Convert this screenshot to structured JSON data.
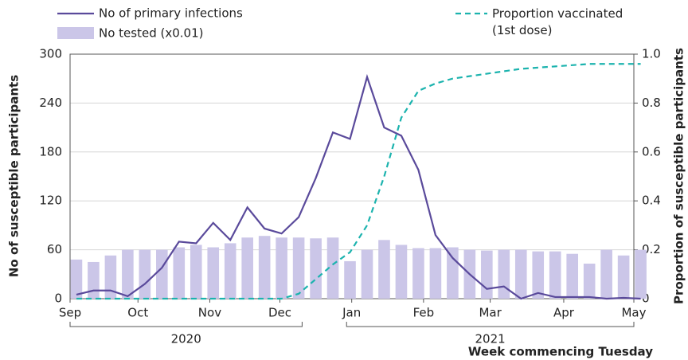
{
  "chart_data": {
    "type": "combo",
    "y_label": "No of susceptible participants",
    "y2_label": "Proportion of susceptible participants",
    "x_label": "Week commencing Tuesday",
    "x": [
      0,
      1,
      2,
      3,
      4,
      5,
      6,
      7,
      8,
      9,
      10,
      11,
      12,
      13,
      14,
      15,
      16,
      17,
      18,
      19,
      20,
      21,
      22,
      23,
      24,
      25,
      26,
      27,
      28,
      29,
      30,
      31,
      32,
      33
    ],
    "xlim": [
      -0.37,
      32.6
    ],
    "xticks": [
      {
        "value": -0.37,
        "label": "Sep"
      },
      {
        "value": 3.6,
        "label": "Oct"
      },
      {
        "value": 7.8,
        "label": "Nov"
      },
      {
        "value": 11.9,
        "label": "Dec"
      },
      {
        "value": 16.1,
        "label": "Jan"
      },
      {
        "value": 20.3,
        "label": "Feb"
      },
      {
        "value": 24.2,
        "label": "Mar"
      },
      {
        "value": 28.5,
        "label": "Apr"
      },
      {
        "value": 32.6,
        "label": "May"
      }
    ],
    "years": [
      {
        "label": "2020",
        "from": -0.37,
        "to": 13.2
      },
      {
        "label": "2021",
        "from": 15.8,
        "to": 32.6
      }
    ],
    "ylim": [
      0,
      300
    ],
    "yticks": [
      0,
      60,
      120,
      180,
      240,
      300
    ],
    "y2lim": [
      0,
      1
    ],
    "y2ticks": [
      0,
      0.2,
      0.4,
      0.6,
      0.8,
      {
        "value": 1,
        "label": "1.0"
      }
    ],
    "grid": true,
    "series": [
      {
        "name": "No tested (x0.01)",
        "kind": "bar",
        "color": "#cbc6e8",
        "values": [
          48,
          45,
          53,
          60,
          60,
          60,
          63,
          66,
          63,
          68,
          75,
          77,
          75,
          75,
          74,
          75,
          46,
          60,
          72,
          66,
          62,
          62,
          63,
          60,
          59,
          60,
          60,
          58,
          58,
          55,
          43,
          60,
          53,
          60
        ]
      },
      {
        "name": "No of primary infections",
        "kind": "line",
        "color": "#5a4a9b",
        "values": [
          5,
          10,
          10,
          3,
          18,
          38,
          70,
          68,
          93,
          72,
          112,
          86,
          80,
          100,
          148,
          204,
          196,
          272,
          210,
          200,
          158,
          78,
          50,
          30,
          12,
          15,
          0,
          7,
          2,
          2,
          2,
          0,
          1,
          0
        ]
      },
      {
        "name": "Proportion vaccinated (1st dose)",
        "kind": "dashed",
        "axis": "y2",
        "color": "#1cb3ae",
        "values": [
          0,
          0,
          0,
          0,
          0,
          0,
          0,
          0,
          0,
          0,
          0,
          0,
          0,
          0.02,
          0.08,
          0.14,
          0.19,
          0.3,
          0.5,
          0.74,
          0.85,
          0.88,
          0.9,
          0.91,
          0.92,
          0.93,
          0.94,
          0.945,
          0.95,
          0.955,
          0.96,
          0.96,
          0.96,
          0.96
        ]
      }
    ]
  }
}
